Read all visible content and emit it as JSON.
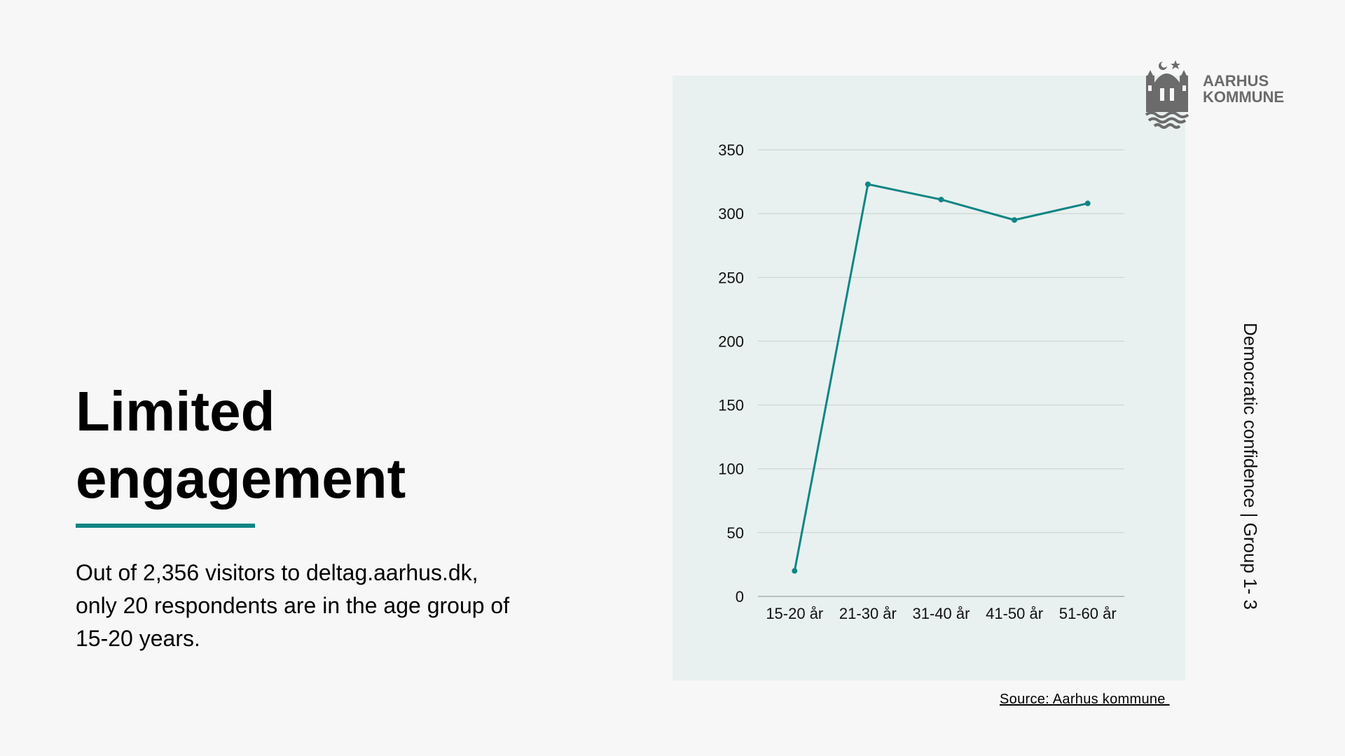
{
  "title": {
    "line1": "Limited",
    "line2": "engagement"
  },
  "body_text": "Out of 2,356 visitors to deltag.aarhus.dk, only 20 respondents are in the age group of 15-20 years.",
  "side_label": "Democratic confidence | Group 1- 3",
  "source": "Source: Aarhus kommune ",
  "logo": {
    "line1": "AARHUS",
    "line2": "KOMMUNE",
    "icon": "aarhus-coat-of-arms-icon"
  },
  "colors": {
    "accent": "#0f8585",
    "panel": "#e8f1ef",
    "logo_gray": "#6b6b6b"
  },
  "chart_data": {
    "type": "line",
    "categories": [
      "15-20 år",
      "21-30 år",
      "31-40 år",
      "41-50 år",
      "51-60 år"
    ],
    "values": [
      20,
      323,
      311,
      295,
      308
    ],
    "yticks": [
      0,
      50,
      100,
      150,
      200,
      250,
      300,
      350
    ],
    "ylim": [
      0,
      350
    ],
    "grid": true,
    "title": "",
    "xlabel": "",
    "ylabel": ""
  }
}
